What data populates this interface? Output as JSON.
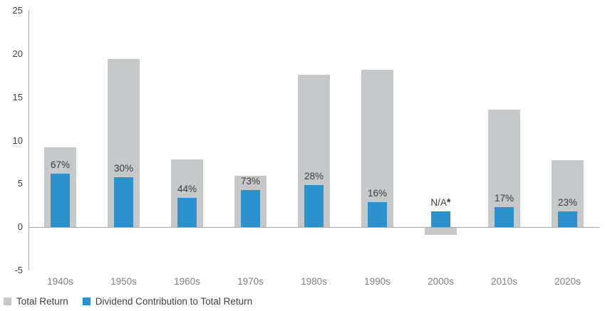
{
  "chart_data": {
    "type": "bar",
    "title": "",
    "xlabel": "",
    "ylabel": "",
    "categories": [
      "1940s",
      "1950s",
      "1960s",
      "1970s",
      "1980s",
      "1990s",
      "2000s",
      "2010s",
      "2020s"
    ],
    "series": [
      {
        "name": "Total Return",
        "color": "#c7c8ca",
        "values": [
          9.2,
          19.4,
          7.8,
          5.9,
          17.6,
          18.2,
          -0.9,
          13.6,
          7.7
        ]
      },
      {
        "name": "Dividend Contribution to Total Return",
        "color": "#2b92ce",
        "values": [
          6.2,
          5.8,
          3.4,
          4.3,
          4.9,
          2.9,
          1.8,
          2.3,
          1.8
        ]
      }
    ],
    "bar_labels": [
      "67%",
      "30%",
      "44%",
      "73%",
      "28%",
      "16%",
      "N/A*",
      "17%",
      "23%"
    ],
    "ylim": [
      -5,
      25
    ],
    "yticks": [
      25,
      20,
      15,
      10,
      5,
      0,
      -5
    ],
    "grid": false,
    "legend_position": "bottom-left"
  },
  "colors": {
    "axis_line": "#a6a6a6",
    "ytick_text": "#404040",
    "xtick_text": "#7f7f7f",
    "bar_label_text": "#3b3b3b",
    "legend_text": "#404040"
  }
}
